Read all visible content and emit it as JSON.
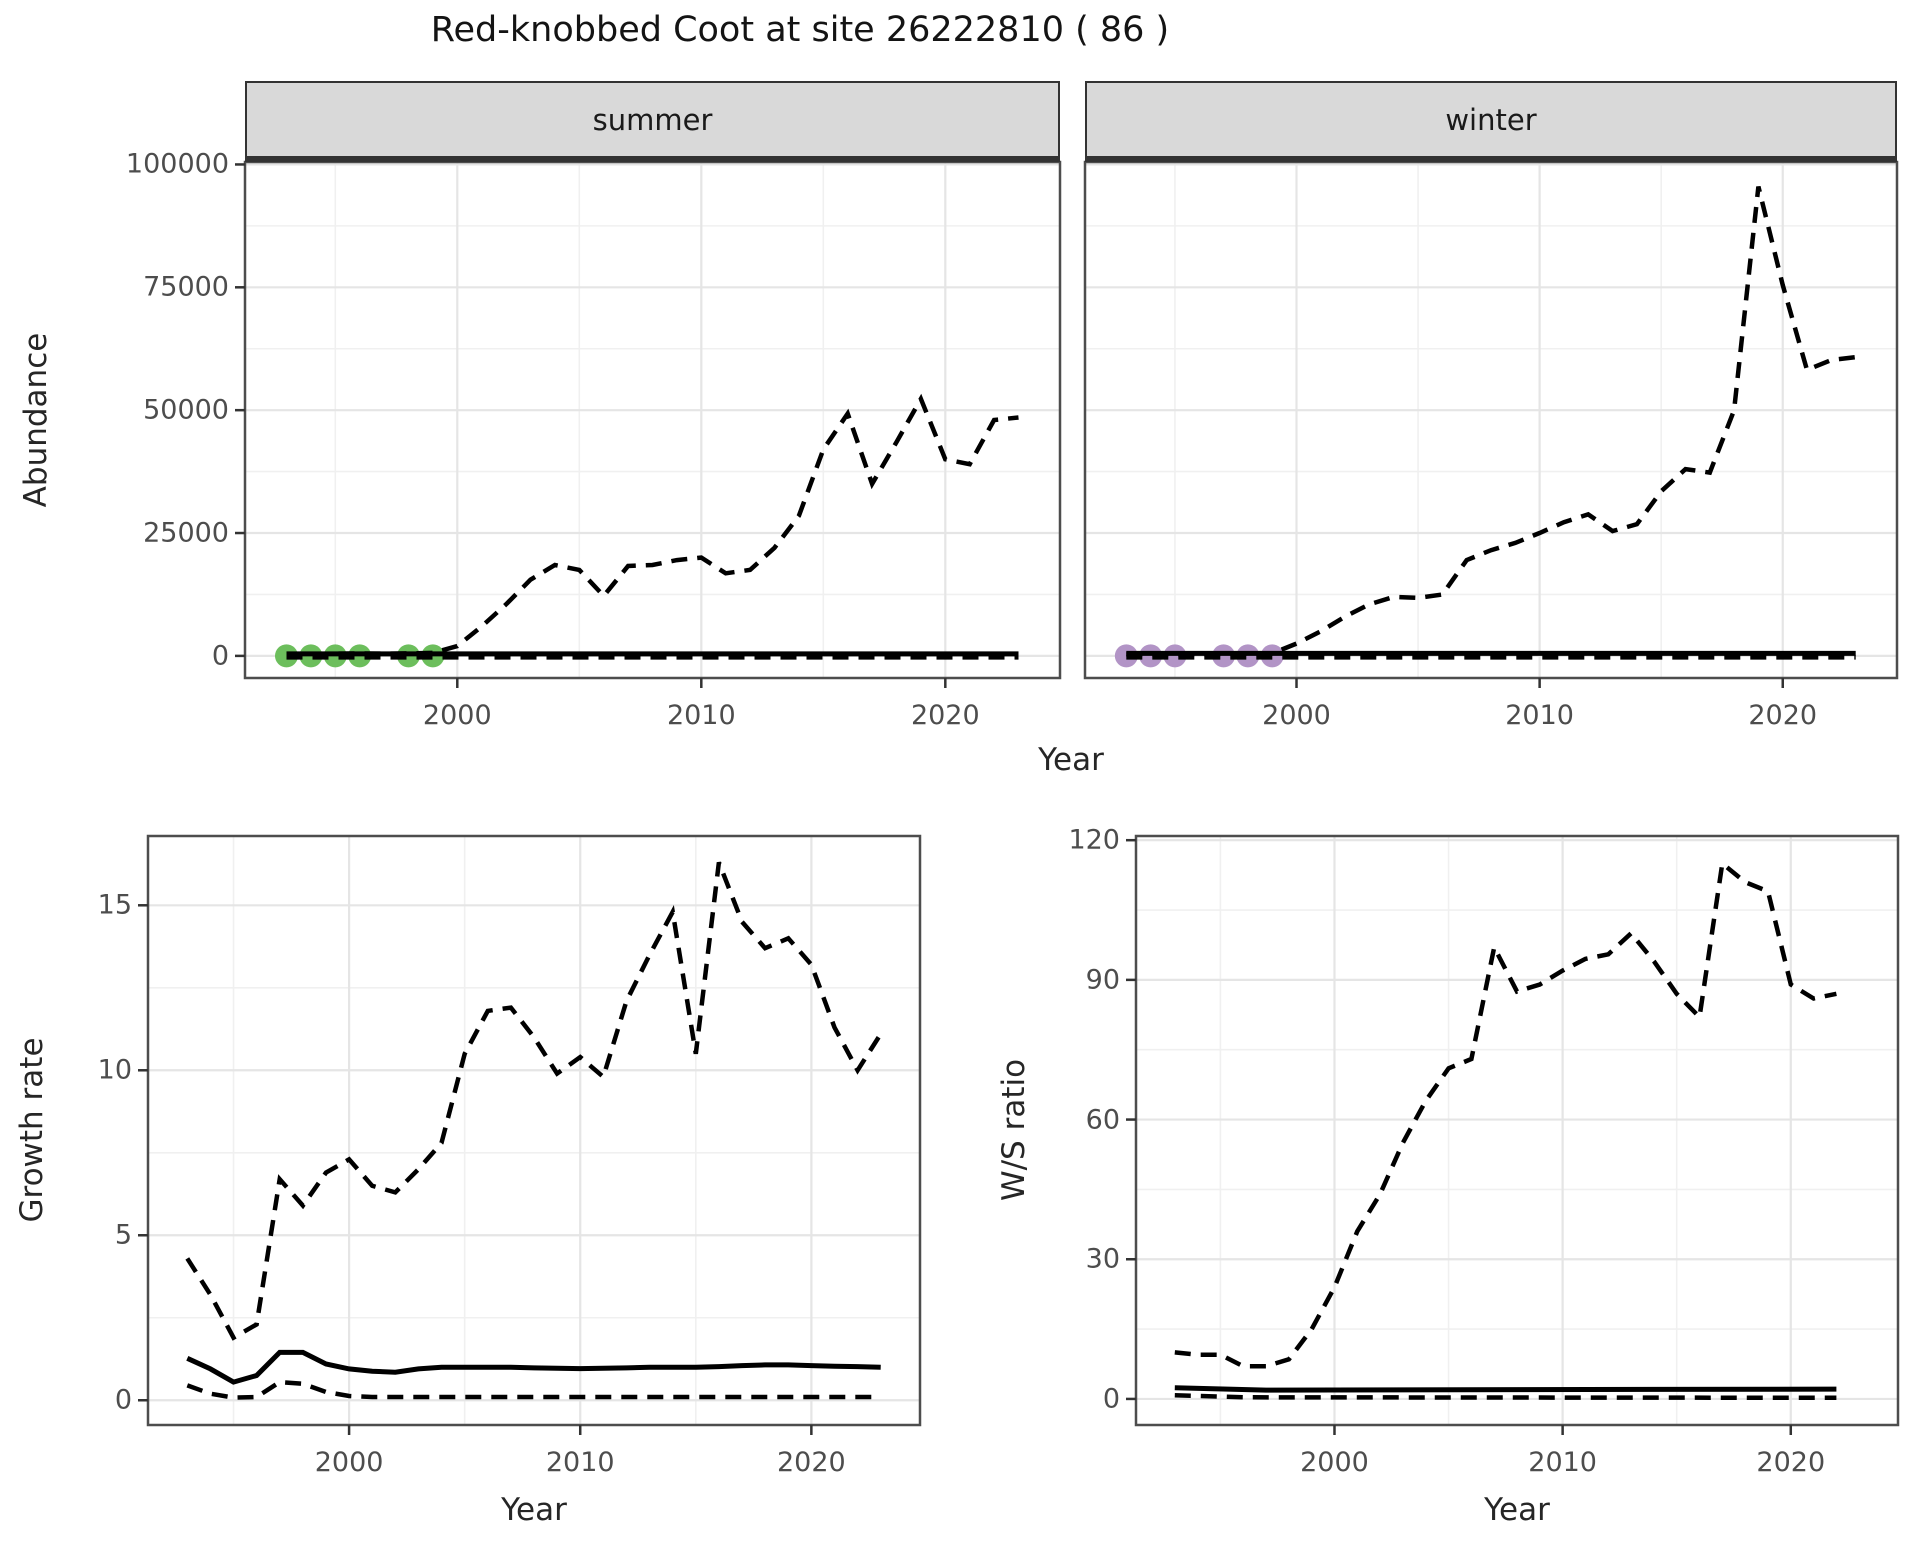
{
  "title": "Red-knobbed Coot at site 26222810 ( 86 )",
  "colors": {
    "summer_dot": "#6CBE5C",
    "winter_dot": "#B294C6",
    "line": "#000000",
    "grid_major": "#e5e5e5",
    "grid_minor": "#f0f0f0",
    "panel_border": "#4d4d4d",
    "tick_mark": "#333333",
    "strip_bg": "#d9d9d9",
    "axis_text": "#4d4d4d"
  },
  "top_chart": {
    "ylabel": "Abundance",
    "xlabel": "Year"
  },
  "bottom_left_chart": {
    "ylabel": "Growth rate",
    "xlabel": "Year"
  },
  "bottom_right_chart": {
    "ylabel": "W/S ratio",
    "xlabel": "Year"
  },
  "chart_data": [
    {
      "id": "abundance_summer",
      "type": "line",
      "facet_label": "summer",
      "xlim": [
        1991.3,
        2024.7
      ],
      "ylim": [
        -4500,
        100500
      ],
      "x_major": [
        2000,
        2010,
        2020
      ],
      "x_tick_labels": [
        "2000",
        "2010",
        "2020"
      ],
      "x_minor": [
        1995,
        2005,
        2015
      ],
      "y_major": [
        0,
        25000,
        50000,
        75000,
        100000
      ],
      "y_tick_labels": [
        "0",
        "25000",
        "50000",
        "75000",
        "100000"
      ],
      "y_minor": [
        12500,
        37500,
        62500,
        87500
      ],
      "series": [
        {
          "name": "observed-points",
          "style": "points",
          "color_key": "summer_dot",
          "x": [
            1993,
            1994,
            1995,
            1996,
            1998,
            1999
          ],
          "y": [
            0,
            0,
            0,
            0,
            0,
            0
          ]
        },
        {
          "name": "lower-ci",
          "style": "dashed",
          "x": [
            1993,
            2023
          ],
          "y": [
            -300,
            -300
          ]
        },
        {
          "name": "median",
          "style": "solid",
          "x": [
            1993,
            2023
          ],
          "y": [
            400,
            400
          ]
        },
        {
          "name": "upper-ci",
          "style": "dashed",
          "x": [
            1993,
            1994,
            1995,
            1996,
            1997,
            1998,
            1999,
            2000,
            2001,
            2002,
            2003,
            2004,
            2005,
            2006,
            2007,
            2008,
            2009,
            2010,
            2011,
            2012,
            2013,
            2014,
            2015,
            2016,
            2017,
            2018,
            2019,
            2020,
            2021,
            2022,
            2023
          ],
          "y": [
            400,
            400,
            450,
            500,
            450,
            500,
            600,
            2000,
            6000,
            10500,
            15500,
            18500,
            17500,
            12200,
            18300,
            18500,
            19500,
            20000,
            16800,
            17500,
            22000,
            28500,
            42000,
            49300,
            35000,
            43500,
            52300,
            40000,
            39000,
            48000,
            48500
          ]
        }
      ]
    },
    {
      "id": "abundance_winter",
      "type": "line",
      "facet_label": "winter",
      "xlim": [
        1991.3,
        2024.7
      ],
      "ylim": [
        -4500,
        100500
      ],
      "x_major": [
        2000,
        2010,
        2020
      ],
      "x_tick_labels": [
        "2000",
        "2010",
        "2020"
      ],
      "x_minor": [
        1995,
        2005,
        2015
      ],
      "y_major": [
        0,
        25000,
        50000,
        75000,
        100000
      ],
      "y_minor": [
        12500,
        37500,
        62500,
        87500
      ],
      "series": [
        {
          "name": "observed-points",
          "style": "points",
          "color_key": "winter_dot",
          "x": [
            1993,
            1994,
            1995,
            1997,
            1998,
            1999
          ],
          "y": [
            0,
            0,
            0,
            0,
            0,
            0
          ]
        },
        {
          "name": "lower-ci",
          "style": "dashed",
          "x": [
            1993,
            2023
          ],
          "y": [
            -300,
            -300
          ]
        },
        {
          "name": "median",
          "style": "solid",
          "x": [
            1993,
            2023
          ],
          "y": [
            500,
            500
          ]
        },
        {
          "name": "upper-ci",
          "style": "dashed",
          "x": [
            1993,
            1994,
            1995,
            1996,
            1997,
            1998,
            1999,
            2000,
            2001,
            2002,
            2003,
            2004,
            2005,
            2006,
            2007,
            2008,
            2009,
            2010,
            2011,
            2012,
            2013,
            2014,
            2015,
            2016,
            2017,
            2018,
            2019,
            2020,
            2021,
            2022,
            2023
          ],
          "y": [
            300,
            300,
            350,
            350,
            400,
            450,
            500,
            2500,
            5000,
            8000,
            10500,
            12000,
            11800,
            12500,
            19500,
            21500,
            23000,
            25000,
            27200,
            28800,
            25400,
            26800,
            33500,
            38000,
            37300,
            50000,
            95500,
            75500,
            58200,
            60200,
            60800
          ]
        }
      ]
    },
    {
      "id": "growth_rate",
      "type": "line",
      "xlim": [
        1991.3,
        2024.7
      ],
      "ylim": [
        -0.75,
        17.1
      ],
      "x_major": [
        2000,
        2010,
        2020
      ],
      "x_tick_labels": [
        "2000",
        "2010",
        "2020"
      ],
      "x_minor": [
        1995,
        2005,
        2015
      ],
      "y_major": [
        0,
        5,
        10,
        15
      ],
      "y_tick_labels": [
        "0",
        "5",
        "10",
        "15"
      ],
      "y_minor": [
        2.5,
        7.5,
        12.5
      ],
      "series": [
        {
          "name": "lower-ci",
          "style": "dashed",
          "x": [
            1993,
            1994,
            1995,
            1996,
            1997,
            1998,
            1999,
            2000,
            2001,
            2002,
            2003,
            2004,
            2005,
            2006,
            2007,
            2008,
            2009,
            2010,
            2011,
            2012,
            2013,
            2014,
            2015,
            2016,
            2017,
            2018,
            2019,
            2020,
            2021,
            2022,
            2023
          ],
          "y": [
            0.45,
            0.2,
            0.08,
            0.1,
            0.55,
            0.5,
            0.25,
            0.13,
            0.1,
            0.1,
            0.1,
            0.1,
            0.1,
            0.1,
            0.1,
            0.1,
            0.1,
            0.1,
            0.1,
            0.1,
            0.1,
            0.1,
            0.1,
            0.1,
            0.1,
            0.1,
            0.1,
            0.1,
            0.1,
            0.1,
            0.1
          ]
        },
        {
          "name": "median",
          "style": "solid",
          "x": [
            1993,
            1994,
            1995,
            1996,
            1997,
            1998,
            1999,
            2000,
            2001,
            2002,
            2003,
            2004,
            2005,
            2006,
            2007,
            2008,
            2009,
            2010,
            2011,
            2012,
            2013,
            2014,
            2015,
            2016,
            2017,
            2018,
            2019,
            2020,
            2021,
            2022,
            2023
          ],
          "y": [
            1.27,
            0.95,
            0.55,
            0.75,
            1.45,
            1.45,
            1.1,
            0.95,
            0.88,
            0.85,
            0.95,
            1.0,
            1.0,
            1.0,
            1.0,
            0.98,
            0.97,
            0.96,
            0.97,
            0.98,
            1.0,
            1.0,
            1.0,
            1.02,
            1.05,
            1.07,
            1.07,
            1.05,
            1.03,
            1.02,
            1.0
          ]
        },
        {
          "name": "upper-ci",
          "style": "dashed",
          "x": [
            1993,
            1994,
            1995,
            1996,
            1997,
            1998,
            1999,
            2000,
            2001,
            2002,
            2003,
            2004,
            2005,
            2006,
            2007,
            2008,
            2009,
            2010,
            2011,
            2012,
            2013,
            2014,
            2015,
            2016,
            2017,
            2018,
            2019,
            2020,
            2021,
            2022,
            2023
          ],
          "y": [
            4.3,
            3.2,
            1.9,
            2.3,
            6.7,
            5.9,
            6.9,
            7.3,
            6.5,
            6.3,
            7.0,
            7.8,
            10.5,
            11.8,
            11.9,
            11.0,
            9.9,
            10.4,
            9.8,
            12.1,
            13.5,
            14.8,
            10.5,
            16.3,
            14.5,
            13.7,
            14.0,
            13.2,
            11.3,
            10.0,
            11.1
          ]
        }
      ]
    },
    {
      "id": "ws_ratio",
      "type": "line",
      "xlim": [
        1991.3,
        2024.7
      ],
      "ylim": [
        -5.6,
        120.9
      ],
      "x_major": [
        2000,
        2010,
        2020
      ],
      "x_tick_labels": [
        "2000",
        "2010",
        "2020"
      ],
      "x_minor": [
        1995,
        2005,
        2015
      ],
      "y_major": [
        0,
        30,
        60,
        90,
        120
      ],
      "y_tick_labels": [
        "0",
        "30",
        "60",
        "90",
        "120"
      ],
      "y_minor": [
        15,
        45,
        75,
        105
      ],
      "series": [
        {
          "name": "lower-ci",
          "style": "dashed",
          "x": [
            1993,
            1996,
            2022
          ],
          "y": [
            0.8,
            0.35,
            0.25
          ]
        },
        {
          "name": "median",
          "style": "solid",
          "x": [
            1993,
            1997,
            2022
          ],
          "y": [
            2.4,
            1.9,
            2.1
          ]
        },
        {
          "name": "upper-ci",
          "style": "dashed",
          "x": [
            1993,
            1994,
            1995,
            1996,
            1997,
            1998,
            1999,
            2000,
            2001,
            2002,
            2003,
            2004,
            2005,
            2006,
            2007,
            2008,
            2009,
            2010,
            2011,
            2012,
            2013,
            2014,
            2015,
            2016,
            2017,
            2018,
            2019,
            2020,
            2021,
            2022
          ],
          "y": [
            10,
            9.5,
            9.5,
            7,
            7,
            8.5,
            15,
            24,
            36,
            44,
            55,
            64,
            71,
            73,
            97,
            87.5,
            89,
            92,
            94.5,
            95.5,
            100,
            94,
            87,
            82,
            115,
            111,
            109,
            89,
            86,
            87
          ]
        }
      ]
    }
  ]
}
